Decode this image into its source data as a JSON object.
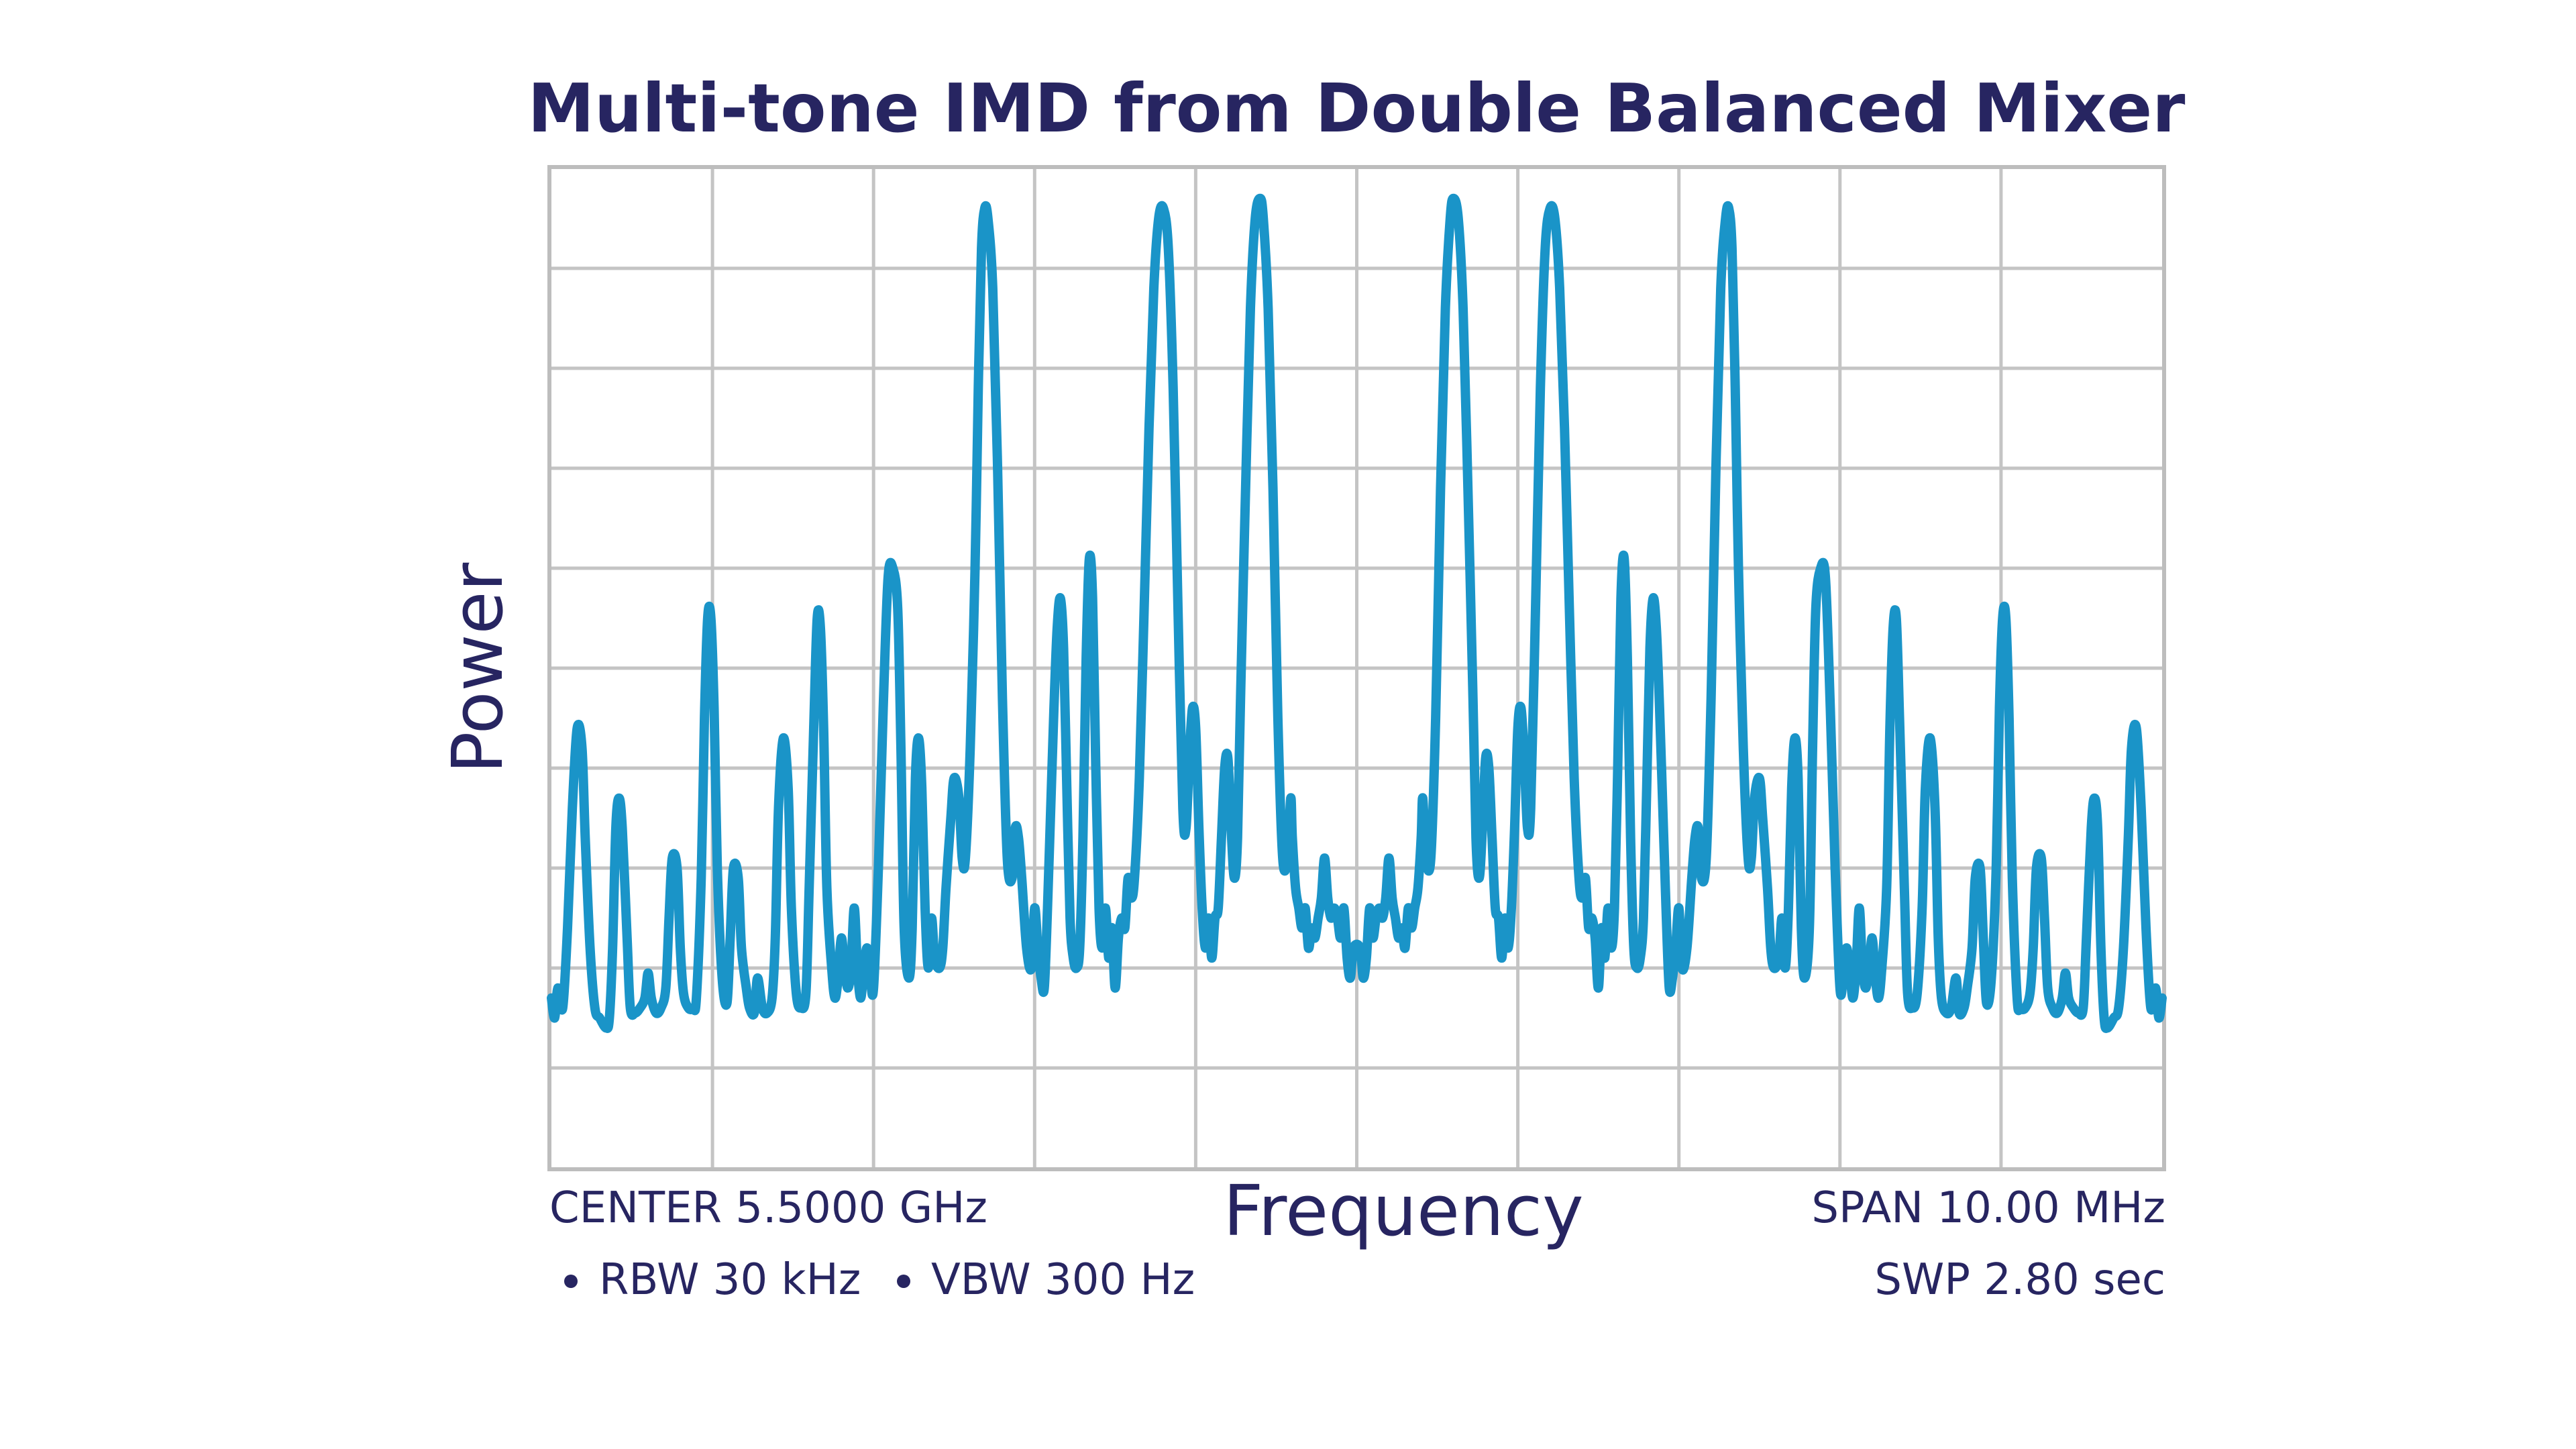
{
  "chart_data": {
    "type": "line",
    "title": "Multi-tone IMD from Double Balanced Mixer",
    "xlabel": "Frequency",
    "ylabel": "Power",
    "x_units": "MHz offset from center",
    "xlim": [
      -5,
      5
    ],
    "ylim": [
      0,
      10
    ],
    "grid": true,
    "grid_divisions": {
      "x": 10,
      "y": 10
    },
    "annotations": {
      "center": "CENTER 5.5000 GHz",
      "span": "SPAN 10.00 MHz",
      "rbw": "RBW 30 kHz",
      "vbw": "VBW 300 Hz",
      "sweep": "SWP 2.80 sec"
    },
    "series": [
      {
        "color": "#1a94c8",
        "points": [
          [
            -5.0,
            1.7
          ],
          [
            -4.98,
            1.5
          ],
          [
            -4.96,
            1.8
          ],
          [
            -4.93,
            1.6
          ],
          [
            -4.9,
            2.4
          ],
          [
            -4.87,
            3.6
          ],
          [
            -4.84,
            4.4
          ],
          [
            -4.81,
            4.2
          ],
          [
            -4.79,
            3.3
          ],
          [
            -4.76,
            2.2
          ],
          [
            -4.73,
            1.6
          ],
          [
            -4.7,
            1.5
          ],
          [
            -4.66,
            1.4
          ],
          [
            -4.64,
            1.5
          ],
          [
            -4.62,
            2.2
          ],
          [
            -4.6,
            3.4
          ],
          [
            -4.58,
            3.7
          ],
          [
            -4.56,
            3.4
          ],
          [
            -4.53,
            2.3
          ],
          [
            -4.51,
            1.6
          ],
          [
            -4.48,
            1.55
          ],
          [
            -4.45,
            1.6
          ],
          [
            -4.42,
            1.7
          ],
          [
            -4.4,
            1.95
          ],
          [
            -4.38,
            1.7
          ],
          [
            -4.35,
            1.55
          ],
          [
            -4.32,
            1.6
          ],
          [
            -4.29,
            1.8
          ],
          [
            -4.27,
            2.5
          ],
          [
            -4.25,
            3.1
          ],
          [
            -4.22,
            3.0
          ],
          [
            -4.2,
            2.2
          ],
          [
            -4.18,
            1.75
          ],
          [
            -4.15,
            1.6
          ],
          [
            -4.12,
            1.6
          ],
          [
            -4.1,
            1.7
          ],
          [
            -4.07,
            2.9
          ],
          [
            -4.05,
            4.5
          ],
          [
            -4.03,
            5.5
          ],
          [
            -4.01,
            5.5
          ],
          [
            -3.99,
            4.6
          ],
          [
            -3.97,
            3.0
          ],
          [
            -3.94,
            1.9
          ],
          [
            -3.91,
            1.65
          ],
          [
            -3.89,
            2.3
          ],
          [
            -3.87,
            3.0
          ],
          [
            -3.84,
            2.9
          ],
          [
            -3.82,
            2.2
          ],
          [
            -3.79,
            1.8
          ],
          [
            -3.77,
            1.6
          ],
          [
            -3.74,
            1.55
          ],
          [
            -3.72,
            1.9
          ],
          [
            -3.69,
            1.6
          ],
          [
            -3.66,
            1.55
          ],
          [
            -3.63,
            1.7
          ],
          [
            -3.61,
            2.3
          ],
          [
            -3.59,
            3.6
          ],
          [
            -3.56,
            4.3
          ],
          [
            -3.53,
            3.8
          ],
          [
            -3.51,
            2.6
          ],
          [
            -3.48,
            1.75
          ],
          [
            -3.45,
            1.6
          ],
          [
            -3.42,
            1.75
          ],
          [
            -3.4,
            2.8
          ],
          [
            -3.37,
            4.5
          ],
          [
            -3.35,
            5.5
          ],
          [
            -3.33,
            5.4
          ],
          [
            -3.31,
            4.4
          ],
          [
            -3.29,
            2.8
          ],
          [
            -3.26,
            2.0
          ],
          [
            -3.24,
            1.7
          ],
          [
            -3.22,
            1.9
          ],
          [
            -3.2,
            2.3
          ],
          [
            -3.18,
            2.0
          ],
          [
            -3.16,
            1.8
          ],
          [
            -3.14,
            2.0
          ],
          [
            -3.12,
            2.6
          ],
          [
            -3.1,
            2.0
          ],
          [
            -3.08,
            1.7
          ],
          [
            -3.06,
            2.0
          ],
          [
            -3.04,
            2.2
          ],
          [
            -3.02,
            1.9
          ],
          [
            -3.0,
            1.8
          ],
          [
            -2.97,
            3.0
          ],
          [
            -2.94,
            4.6
          ],
          [
            -2.91,
            5.9
          ],
          [
            -2.88,
            6.0
          ],
          [
            -2.85,
            5.6
          ],
          [
            -2.83,
            4.2
          ],
          [
            -2.81,
            2.4
          ],
          [
            -2.78,
            1.9
          ],
          [
            -2.76,
            2.4
          ],
          [
            -2.74,
            3.9
          ],
          [
            -2.72,
            4.3
          ],
          [
            -2.7,
            3.8
          ],
          [
            -2.68,
            2.6
          ],
          [
            -2.66,
            2.0
          ],
          [
            -2.64,
            2.5
          ],
          [
            -2.62,
            2.1
          ],
          [
            -2.59,
            2.0
          ],
          [
            -2.57,
            2.2
          ],
          [
            -2.55,
            2.8
          ],
          [
            -2.52,
            3.5
          ],
          [
            -2.5,
            3.9
          ],
          [
            -2.47,
            3.7
          ],
          [
            -2.45,
            3.1
          ],
          [
            -2.43,
            3.1
          ],
          [
            -2.4,
            4.2
          ],
          [
            -2.37,
            6.0
          ],
          [
            -2.35,
            7.8
          ],
          [
            -2.33,
            9.2
          ],
          [
            -2.31,
            9.6
          ],
          [
            -2.29,
            9.5
          ],
          [
            -2.26,
            8.8
          ],
          [
            -2.23,
            7.0
          ],
          [
            -2.2,
            4.7
          ],
          [
            -2.17,
            3.1
          ],
          [
            -2.14,
            2.9
          ],
          [
            -2.12,
            3.4
          ],
          [
            -2.1,
            3.3
          ],
          [
            -2.08,
            2.9
          ],
          [
            -2.05,
            2.2
          ],
          [
            -2.02,
            2.0
          ],
          [
            -2.0,
            2.6
          ],
          [
            -1.98,
            2.2
          ],
          [
            -1.96,
            1.9
          ],
          [
            -1.94,
            1.8
          ],
          [
            -1.92,
            2.6
          ],
          [
            -1.9,
            3.6
          ],
          [
            -1.88,
            4.6
          ],
          [
            -1.86,
            5.4
          ],
          [
            -1.84,
            5.7
          ],
          [
            -1.82,
            5.2
          ],
          [
            -1.8,
            3.8
          ],
          [
            -1.78,
            2.5
          ],
          [
            -1.76,
            2.1
          ],
          [
            -1.74,
            2.0
          ],
          [
            -1.72,
            2.2
          ],
          [
            -1.7,
            3.3
          ],
          [
            -1.68,
            5.1
          ],
          [
            -1.66,
            6.1
          ],
          [
            -1.64,
            5.7
          ],
          [
            -1.62,
            4.0
          ],
          [
            -1.6,
            2.6
          ],
          [
            -1.58,
            2.2
          ],
          [
            -1.56,
            2.6
          ],
          [
            -1.54,
            2.1
          ],
          [
            -1.52,
            2.4
          ],
          [
            -1.5,
            1.8
          ],
          [
            -1.48,
            2.3
          ],
          [
            -1.46,
            2.5
          ],
          [
            -1.44,
            2.4
          ],
          [
            -1.42,
            2.9
          ],
          [
            -1.4,
            2.7
          ],
          [
            -1.38,
            2.9
          ],
          [
            -1.35,
            3.9
          ],
          [
            -1.32,
            5.6
          ],
          [
            -1.29,
            7.4
          ],
          [
            -1.26,
            8.8
          ],
          [
            -1.23,
            9.5
          ],
          [
            -1.2,
            9.6
          ],
          [
            -1.17,
            9.2
          ],
          [
            -1.14,
            7.8
          ],
          [
            -1.11,
            5.6
          ],
          [
            -1.08,
            3.6
          ],
          [
            -1.06,
            3.4
          ],
          [
            -1.04,
            4.1
          ],
          [
            -1.02,
            4.6
          ],
          [
            -1.0,
            4.4
          ],
          [
            -0.98,
            3.4
          ],
          [
            -0.96,
            2.6
          ],
          [
            -0.94,
            2.2
          ],
          [
            -0.92,
            2.5
          ],
          [
            -0.9,
            2.1
          ],
          [
            -0.88,
            2.5
          ],
          [
            -0.86,
            2.6
          ],
          [
            -0.84,
            3.3
          ],
          [
            -0.82,
            4.0
          ],
          [
            -0.8,
            4.1
          ],
          [
            -0.78,
            3.4
          ],
          [
            -0.76,
            2.9
          ],
          [
            -0.74,
            3.3
          ],
          [
            -0.72,
            4.8
          ],
          [
            -0.69,
            6.8
          ],
          [
            -0.66,
            8.6
          ],
          [
            -0.63,
            9.5
          ],
          [
            -0.6,
            9.7
          ],
          [
            -0.58,
            9.5
          ],
          [
            -0.55,
            8.6
          ],
          [
            -0.52,
            6.8
          ],
          [
            -0.49,
            4.5
          ],
          [
            -0.46,
            3.1
          ],
          [
            -0.43,
            3.1
          ],
          [
            -0.41,
            3.7
          ],
          [
            -0.4,
            3.3
          ],
          [
            -0.38,
            2.8
          ],
          [
            -0.36,
            2.6
          ],
          [
            -0.34,
            2.4
          ],
          [
            -0.32,
            2.6
          ],
          [
            -0.3,
            2.2
          ],
          [
            -0.28,
            2.4
          ],
          [
            -0.26,
            2.3
          ],
          [
            -0.24,
            2.5
          ],
          [
            -0.22,
            2.7
          ],
          [
            -0.2,
            3.1
          ],
          [
            -0.18,
            2.7
          ],
          [
            -0.16,
            2.5
          ],
          [
            -0.14,
            2.6
          ],
          [
            -0.12,
            2.5
          ],
          [
            -0.1,
            2.3
          ],
          [
            -0.08,
            2.6
          ],
          [
            -0.06,
            2.1
          ],
          [
            -0.04,
            1.9
          ],
          [
            -0.02,
            2.2
          ]
        ]
      }
    ]
  }
}
